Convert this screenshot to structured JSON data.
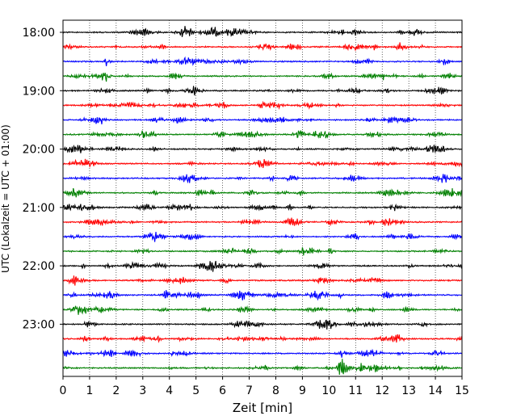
{
  "chart_data": {
    "type": "line",
    "subtype": "helicorder",
    "title": "",
    "xlabel": "Zeit  [min]",
    "ylabel": "UTC (Lokalzeit = UTC + 01:00)",
    "xlim": [
      0,
      15
    ],
    "x_ticks": [
      "0",
      "1",
      "2",
      "3",
      "4",
      "5",
      "6",
      "7",
      "8",
      "9",
      "10",
      "11",
      "12",
      "13",
      "14",
      "15"
    ],
    "y_tick_labels": [
      "18:00",
      "19:00",
      "20:00",
      "21:00",
      "22:00",
      "23:00"
    ],
    "grid": "vertical dotted lines at each minute",
    "legend": "none",
    "trace_interval_minutes": 15,
    "trace_start": "18:00",
    "trace_count": 24,
    "trace_colors": [
      "#000000",
      "#ff0000",
      "#0000ff",
      "#008000"
    ],
    "color_order": "cycles black, red, blue, green for consecutive 15-minute traces"
  }
}
